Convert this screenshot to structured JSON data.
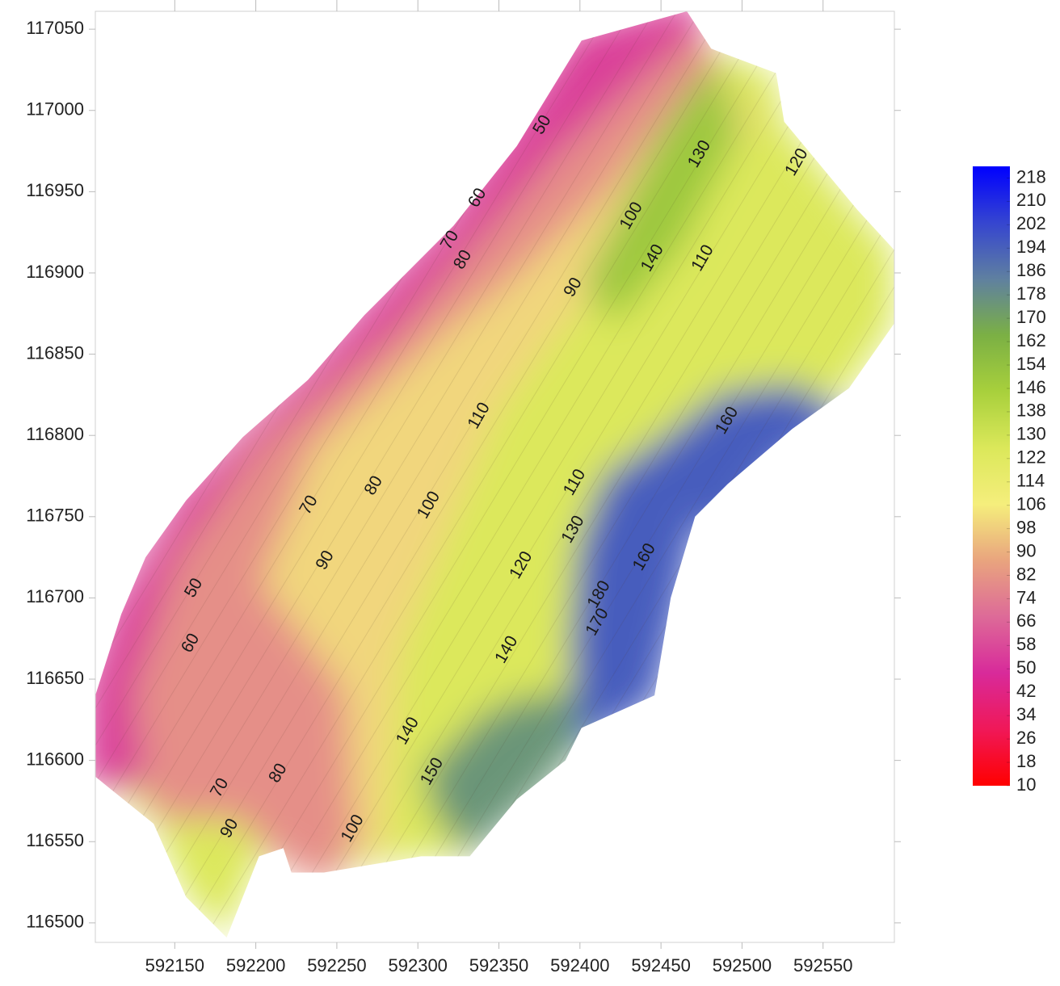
{
  "chart_data": {
    "type": "contour",
    "xlim": [
      592101,
      592594
    ],
    "ylim": [
      116488,
      117061
    ],
    "xticks": [
      592150,
      592200,
      592250,
      592300,
      592350,
      592400,
      592450,
      592500,
      592550
    ],
    "yticks": [
      116500,
      116550,
      116600,
      116650,
      116700,
      116750,
      116800,
      116850,
      116900,
      116950,
      117000,
      117050
    ],
    "clim": [
      10,
      222
    ],
    "colormap": [
      "#ff0000",
      "#f01858",
      "#d82a9a",
      "#dd6a98",
      "#e9a47e",
      "#f5ee7c",
      "#dbe85a",
      "#a8d03c",
      "#7bb044",
      "#5f80a0",
      "#3545d0",
      "#0000ff"
    ],
    "cbar_ticks": [
      218,
      210,
      202,
      194,
      186,
      178,
      170,
      162,
      154,
      146,
      138,
      130,
      122,
      114,
      106,
      98,
      90,
      82,
      74,
      66,
      58,
      50,
      42,
      34,
      26,
      18,
      10
    ],
    "zones": [
      {
        "value": 125,
        "polygon": [
          [
            592101,
            116640
          ],
          [
            592117,
            116690
          ],
          [
            592132,
            116725
          ],
          [
            592157,
            116760
          ],
          [
            592192,
            116799
          ],
          [
            592232,
            116834
          ],
          [
            592267,
            116874
          ],
          [
            592322,
            116929
          ],
          [
            592361,
            116978
          ],
          [
            592401,
            117043
          ],
          [
            592466,
            117061
          ],
          [
            592481,
            117038
          ],
          [
            592521,
            117023
          ],
          [
            592526,
            116993
          ],
          [
            592571,
            116939
          ],
          [
            592594,
            116914
          ],
          [
            592594,
            116869
          ],
          [
            592566,
            116829
          ],
          [
            592531,
            116804
          ],
          [
            592491,
            116770
          ],
          [
            592471,
            116750
          ],
          [
            592456,
            116700
          ],
          [
            592446,
            116640
          ],
          [
            592401,
            116620
          ],
          [
            592391,
            116600
          ],
          [
            592361,
            116576
          ],
          [
            592332,
            116541
          ],
          [
            592302,
            116541
          ],
          [
            592242,
            116531
          ],
          [
            592222,
            116531
          ],
          [
            592217,
            116546
          ],
          [
            592202,
            116541
          ],
          [
            592182,
            116491
          ],
          [
            592157,
            116516
          ],
          [
            592137,
            116561
          ],
          [
            592101,
            116590
          ]
        ]
      },
      {
        "value": 55,
        "polygon": [
          [
            592101,
            116640
          ],
          [
            592117,
            116690
          ],
          [
            592157,
            116760
          ],
          [
            592232,
            116834
          ],
          [
            592322,
            116929
          ],
          [
            592401,
            117043
          ],
          [
            592466,
            117061
          ],
          [
            592471,
            117038
          ],
          [
            592391,
            116968
          ],
          [
            592292,
            116859
          ],
          [
            592207,
            116789
          ],
          [
            592157,
            116720
          ],
          [
            592132,
            116640
          ],
          [
            592127,
            116590
          ],
          [
            592101,
            116590
          ]
        ]
      },
      {
        "value": 80,
        "polygon": [
          [
            592132,
            116640
          ],
          [
            592157,
            116720
          ],
          [
            592207,
            116789
          ],
          [
            592292,
            116859
          ],
          [
            592391,
            116968
          ],
          [
            592471,
            117038
          ],
          [
            592481,
            117018
          ],
          [
            592421,
            116944
          ],
          [
            592361,
            116889
          ],
          [
            592322,
            116859
          ],
          [
            592242,
            116789
          ],
          [
            592212,
            116710
          ],
          [
            592262,
            116645
          ],
          [
            592267,
            116571
          ],
          [
            592242,
            116531
          ],
          [
            592217,
            116546
          ],
          [
            592192,
            116571
          ],
          [
            592142,
            116571
          ]
        ]
      },
      {
        "value": 100,
        "polygon": [
          [
            592212,
            116710
          ],
          [
            592242,
            116789
          ],
          [
            592322,
            116859
          ],
          [
            592361,
            116889
          ],
          [
            592421,
            116944
          ],
          [
            592481,
            117018
          ],
          [
            592501,
            116993
          ],
          [
            592431,
            116919
          ],
          [
            592381,
            116869
          ],
          [
            592342,
            116819
          ],
          [
            592312,
            116745
          ],
          [
            592282,
            116670
          ],
          [
            592277,
            116620
          ],
          [
            592272,
            116546
          ],
          [
            592267,
            116571
          ],
          [
            592262,
            116645
          ]
        ]
      },
      {
        "value": 150,
        "polygon": [
          [
            592456,
            116983
          ],
          [
            592481,
            117018
          ],
          [
            592491,
            116988
          ],
          [
            592456,
            116919
          ],
          [
            592421,
            116879
          ],
          [
            592411,
            116894
          ]
        ]
      },
      {
        "value": 175,
        "polygon": [
          [
            592312,
            116591
          ],
          [
            592342,
            116620
          ],
          [
            592361,
            116630
          ],
          [
            592391,
            116635
          ],
          [
            592401,
            116620
          ],
          [
            592361,
            116576
          ],
          [
            592332,
            116551
          ],
          [
            592317,
            116571
          ]
        ]
      },
      {
        "value": 195,
        "polygon": [
          [
            592406,
            116730
          ],
          [
            592421,
            116770
          ],
          [
            592451,
            116789
          ],
          [
            592491,
            116819
          ],
          [
            592531,
            116824
          ],
          [
            592556,
            116809
          ],
          [
            592521,
            116789
          ],
          [
            592491,
            116750
          ],
          [
            592466,
            116750
          ],
          [
            592456,
            116700
          ],
          [
            592441,
            116640
          ],
          [
            592406,
            116620
          ],
          [
            592401,
            116670
          ]
        ]
      }
    ],
    "contour_labels": [
      {
        "value": 50,
        "x": 592377,
        "y": 116991
      },
      {
        "value": 60,
        "x": 592337,
        "y": 116946
      },
      {
        "value": 70,
        "x": 592320,
        "y": 116920
      },
      {
        "value": 80,
        "x": 592328,
        "y": 116908
      },
      {
        "value": 90,
        "x": 592396,
        "y": 116891
      },
      {
        "value": 100,
        "x": 592432,
        "y": 116935
      },
      {
        "value": 140,
        "x": 592445,
        "y": 116909
      },
      {
        "value": 110,
        "x": 592476,
        "y": 116909
      },
      {
        "value": 130,
        "x": 592474,
        "y": 116973
      },
      {
        "value": 120,
        "x": 592534,
        "y": 116968
      },
      {
        "value": 110,
        "x": 592338,
        "y": 116812
      },
      {
        "value": 160,
        "x": 592491,
        "y": 116809
      },
      {
        "value": 70,
        "x": 592233,
        "y": 116757
      },
      {
        "value": 80,
        "x": 592273,
        "y": 116769
      },
      {
        "value": 100,
        "x": 592307,
        "y": 116757
      },
      {
        "value": 110,
        "x": 592397,
        "y": 116771
      },
      {
        "value": 130,
        "x": 592396,
        "y": 116742
      },
      {
        "value": 90,
        "x": 592243,
        "y": 116723
      },
      {
        "value": 120,
        "x": 592364,
        "y": 116720
      },
      {
        "value": 160,
        "x": 592440,
        "y": 116725
      },
      {
        "value": 50,
        "x": 592162,
        "y": 116706
      },
      {
        "value": 60,
        "x": 592160,
        "y": 116672
      },
      {
        "value": 140,
        "x": 592355,
        "y": 116668
      },
      {
        "value": 180,
        "x": 592412,
        "y": 116702
      },
      {
        "value": 170,
        "x": 592411,
        "y": 116685
      },
      {
        "value": 140,
        "x": 592294,
        "y": 116618
      },
      {
        "value": 80,
        "x": 592214,
        "y": 116592
      },
      {
        "value": 70,
        "x": 592178,
        "y": 116583
      },
      {
        "value": 150,
        "x": 592309,
        "y": 116593
      },
      {
        "value": 90,
        "x": 592184,
        "y": 116558
      },
      {
        "value": 100,
        "x": 592260,
        "y": 116558
      }
    ]
  }
}
